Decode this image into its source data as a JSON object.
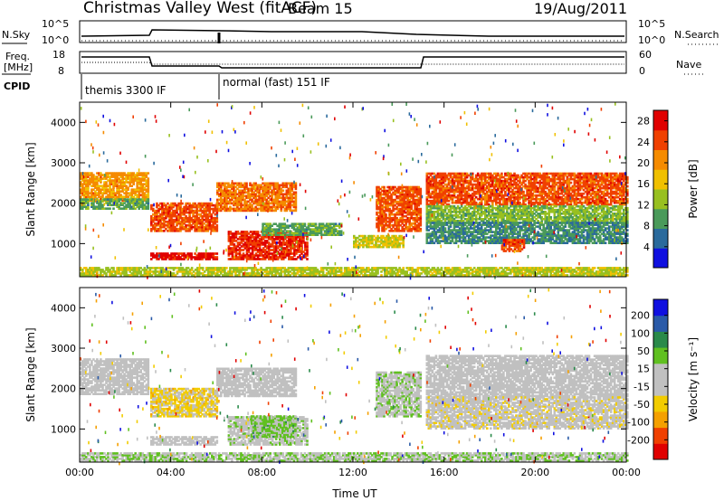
{
  "header": {
    "title": "Christmas Valley West (fitACF)",
    "beam": "Beam 15",
    "date": "19/Aug/2011"
  },
  "params": {
    "nsky_label": "N.Sky",
    "nsearch_label": "N.Search",
    "nsky_ticks": [
      "10^5",
      "10^0"
    ],
    "freq_label": [
      "Freq.",
      "[MHz]"
    ],
    "freq_ticks": [
      "18",
      "8"
    ],
    "nave_label": "Nave",
    "nave_ticks": [
      "60",
      "0"
    ],
    "cpid_label": "CPID",
    "cpid_segments": [
      "themis 3300 IF",
      "normal (fast) 151 IF"
    ]
  },
  "colors": {
    "power": [
      "#1010e0",
      "#2a6a9c",
      "#4a9a5a",
      "#98c020",
      "#f0c000",
      "#f58b00",
      "#f04000",
      "#e00000"
    ],
    "velocity": [
      "#e00000",
      "#f04000",
      "#f5a000",
      "#f2cc00",
      "#c0c0c0",
      "#c0c0c0",
      "#60c020",
      "#2a8a4a",
      "#2a5aa8",
      "#1010e0"
    ]
  },
  "chart_data": [
    {
      "type": "heatmap",
      "ylabel": "Slant Range [km]",
      "x_ticks": [
        "00:00",
        "04:00",
        "08:00",
        "12:00",
        "16:00",
        "20:00",
        "00:00"
      ],
      "y_ticks": [
        1000,
        2000,
        3000,
        4000
      ],
      "xlim_hours": [
        0,
        24
      ],
      "ylim_km": [
        180,
        4500
      ],
      "colorbar": {
        "label": "Power [dB]",
        "ticks": [
          "4",
          "8",
          "12",
          "16",
          "20",
          "24",
          "28"
        ],
        "range": [
          0,
          30
        ]
      },
      "bands": [
        {
          "t0": 0.0,
          "t1": 3.0,
          "r0": 2050,
          "r1": 2750,
          "v": 20
        },
        {
          "t0": 0.0,
          "t1": 3.0,
          "r0": 1850,
          "r1": 2100,
          "v": 10
        },
        {
          "t0": 3.1,
          "t1": 6.0,
          "r0": 1300,
          "r1": 2000,
          "v": 24
        },
        {
          "t0": 3.1,
          "t1": 6.0,
          "r0": 600,
          "r1": 780,
          "v": 28
        },
        {
          "t0": 6.0,
          "t1": 9.5,
          "r0": 1800,
          "r1": 2500,
          "v": 22
        },
        {
          "t0": 6.5,
          "t1": 10.0,
          "r0": 600,
          "r1": 1300,
          "v": 26
        },
        {
          "t0": 8.0,
          "t1": 11.5,
          "r0": 1200,
          "r1": 1500,
          "v": 10
        },
        {
          "t0": 12.0,
          "t1": 14.2,
          "r0": 900,
          "r1": 1200,
          "v": 16
        },
        {
          "t0": 13.0,
          "t1": 15.0,
          "r0": 1300,
          "r1": 2400,
          "v": 24
        },
        {
          "t0": 15.2,
          "t1": 24.0,
          "r0": 1950,
          "r1": 2750,
          "v": 24
        },
        {
          "t0": 15.2,
          "t1": 24.0,
          "r0": 1500,
          "r1": 1950,
          "v": 12
        },
        {
          "t0": 15.2,
          "t1": 24.0,
          "r0": 1000,
          "r1": 1500,
          "v": 8
        },
        {
          "t0": 18.5,
          "t1": 19.5,
          "r0": 800,
          "r1": 1100,
          "v": 24
        },
        {
          "t0": 0.0,
          "t1": 24.0,
          "r0": 200,
          "r1": 400,
          "v": 14
        }
      ]
    },
    {
      "type": "heatmap",
      "ylabel": "Slant Range [km]",
      "xlabel": "Time UT",
      "x_ticks": [
        "00:00",
        "04:00",
        "08:00",
        "12:00",
        "16:00",
        "20:00",
        "00:00"
      ],
      "y_ticks": [
        1000,
        2000,
        3000,
        4000
      ],
      "xlim_hours": [
        0,
        24
      ],
      "ylim_km": [
        180,
        4500
      ],
      "colorbar": {
        "label": "Velocity [m s⁻¹]",
        "ticks": [
          "200",
          "100",
          "50",
          "15",
          "-15",
          "-50",
          "-100",
          "-200"
        ],
        "range": [
          -250,
          250
        ]
      },
      "bands": [
        {
          "t0": 0.0,
          "t1": 3.0,
          "r0": 1850,
          "r1": 2750,
          "v": 0
        },
        {
          "t0": 3.1,
          "t1": 6.0,
          "r0": 1300,
          "r1": 2000,
          "v": -60
        },
        {
          "t0": 3.1,
          "t1": 6.0,
          "r0": 600,
          "r1": 800,
          "v": 0
        },
        {
          "t0": 6.0,
          "t1": 9.5,
          "r0": 1800,
          "r1": 2500,
          "v": 0
        },
        {
          "t0": 6.5,
          "t1": 10.0,
          "r0": 600,
          "r1": 1300,
          "v": 20
        },
        {
          "t0": 7.5,
          "t1": 9.5,
          "r0": 800,
          "r1": 1300,
          "v": 60
        },
        {
          "t0": 13.0,
          "t1": 15.0,
          "r0": 1300,
          "r1": 2400,
          "v": 30
        },
        {
          "t0": 15.2,
          "t1": 24.0,
          "r0": 1800,
          "r1": 2800,
          "v": 0
        },
        {
          "t0": 15.2,
          "t1": 24.0,
          "r0": 1000,
          "r1": 1800,
          "v": -20
        },
        {
          "t0": 0.0,
          "t1": 24.0,
          "r0": 200,
          "r1": 400,
          "v": 40
        }
      ]
    }
  ]
}
